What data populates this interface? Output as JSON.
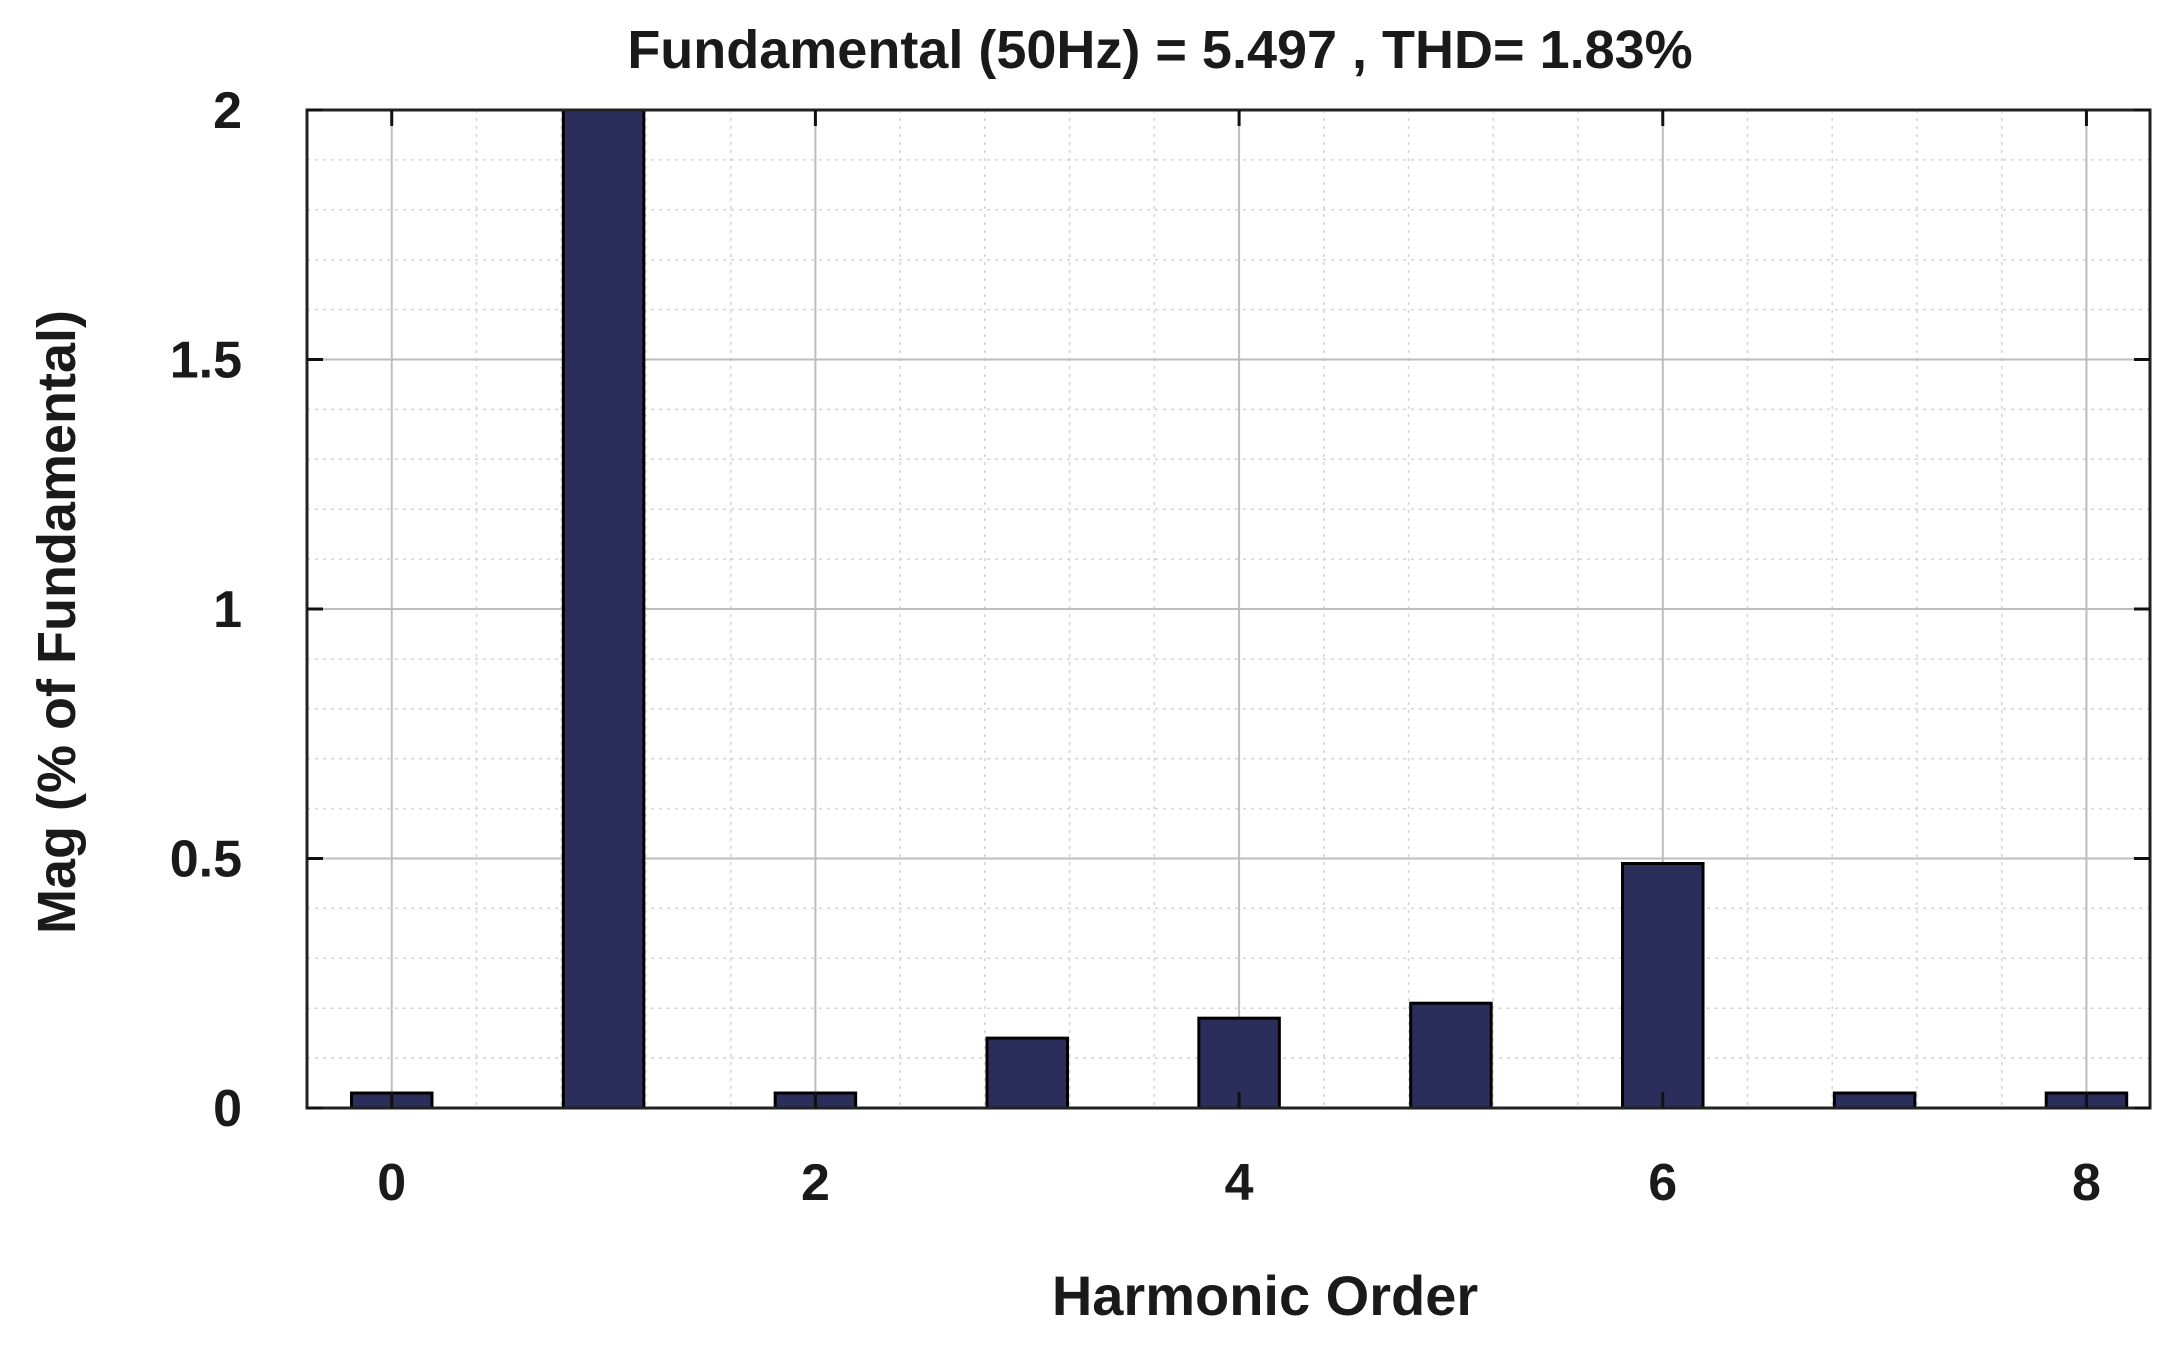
{
  "chart_data": {
    "type": "bar",
    "title": "Fundamental (50Hz) = 5.497 , THD= 1.83%",
    "xlabel": "Harmonic Order",
    "ylabel": "Mag (% of Fundamental)",
    "x": [
      0,
      1,
      2,
      3,
      4,
      5,
      6,
      7,
      8
    ],
    "values": [
      0.03,
      2.0,
      0.03,
      0.14,
      0.18,
      0.21,
      0.49,
      0.03,
      0.03
    ],
    "xlim": [
      -0.4,
      8.3
    ],
    "ylim": [
      0,
      2
    ],
    "xticks": [
      0,
      2,
      4,
      6,
      8
    ],
    "xtick_labels": [
      "0",
      "2",
      "4",
      "6",
      "8"
    ],
    "yticks": [
      0,
      0.5,
      1,
      1.5,
      2
    ],
    "ytick_labels": [
      "0",
      "0.5",
      "1",
      "1.5",
      "2"
    ],
    "grid": true,
    "minor_grid": true,
    "bar_color": "#2b2d5b",
    "bar_edge_color": "#000000"
  }
}
